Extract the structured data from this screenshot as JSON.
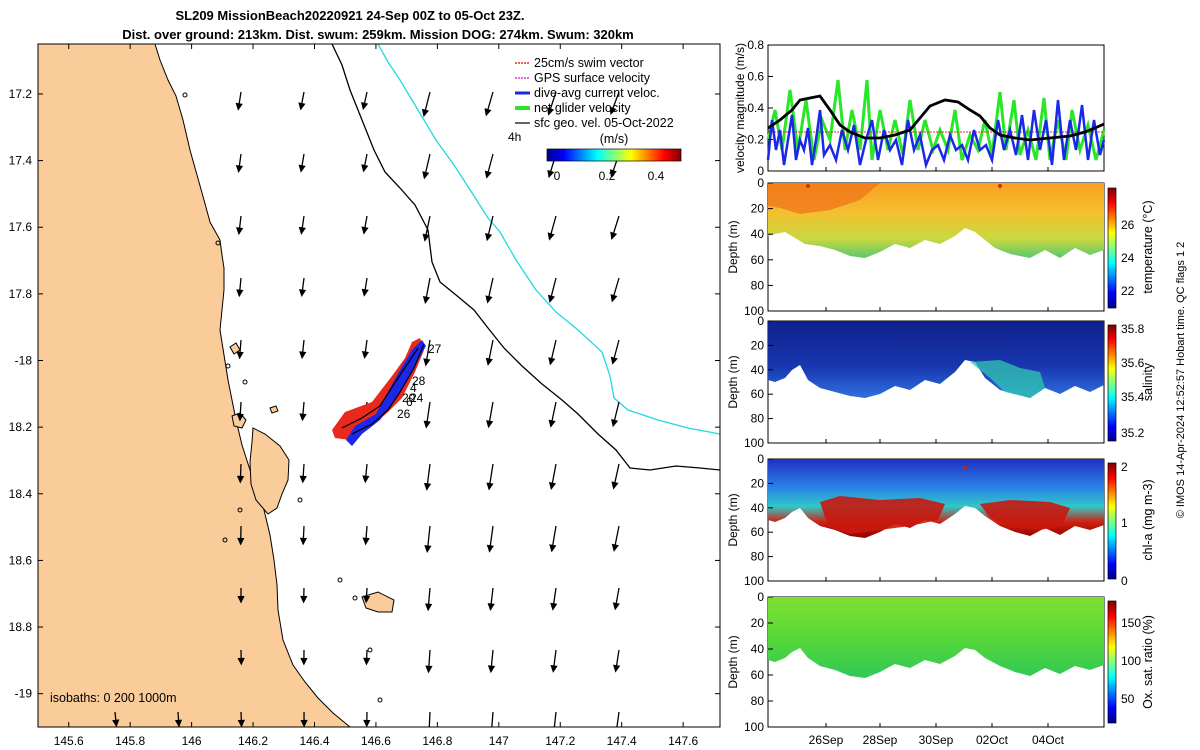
{
  "title_line1": "SL209 MissionBeach20220921 24-Sep 00Z to 05-Oct 23Z.",
  "title_line2": "Dist. over ground: 213km. Dist. swum: 259km. Mission DOG: 274km. Swum: 320km",
  "map": {
    "xlim": [
      145.5,
      147.72
    ],
    "ylim": [
      -19.1,
      -17.05
    ],
    "x_ticks": [
      145.6,
      145.8,
      146,
      146.2,
      146.4,
      146.6,
      146.8,
      147,
      147.2,
      147.4,
      147.6
    ],
    "y_ticks": [
      -17.2,
      -17.4,
      -17.6,
      -17.8,
      -18,
      -18.2,
      -18.4,
      -18.6,
      -18.8,
      -19
    ],
    "x_tick_labels": [
      "145.6",
      "145.8",
      "146",
      "146.2",
      "146.4",
      "146.6",
      "146.8",
      "147",
      "147.2",
      "147.4",
      "147.6"
    ],
    "y_tick_labels": [
      "17.2",
      "17.4",
      "17.6",
      "17.8",
      "-18",
      "18.2",
      "18.4",
      "18.6",
      "18.8",
      "-19"
    ],
    "land_color": "#f9cc9a",
    "isobath_label": "isobaths: 0   200  1000m",
    "time_label": "4h",
    "day_labels": [
      "27",
      "28",
      "4",
      "24",
      "20",
      "26",
      "6"
    ],
    "legend": [
      {
        "label": "25cm/s swim vector",
        "color": "#e8291c"
      },
      {
        "label": "GPS surface velocity",
        "color": "#e535d9"
      },
      {
        "label": "dive-avg current veloc.",
        "color": "#1c28e8"
      },
      {
        "label": "net glider velocity",
        "color": "#29e629"
      },
      {
        "label": "sfc geo. vel. 05-Oct-2022",
        "color": "#000000"
      }
    ],
    "colorbar": {
      "unit": "(m/s)",
      "tick_labels": [
        "0",
        "0.2",
        "0.4"
      ]
    }
  },
  "right_panels": {
    "time_tick_labels": [
      "26Sep",
      "28Sep",
      "30Sep",
      "02Oct",
      "04Oct"
    ],
    "velocity": {
      "ylabel": "velocity magnitude (m/s)",
      "y_tick_labels": [
        "0",
        "0.2",
        "0.4",
        "0.6",
        "0.8"
      ],
      "ylim": [
        0,
        0.8
      ]
    },
    "depth_label": "Depth (m)",
    "depth_tick_labels": [
      "0",
      "20",
      "40",
      "60",
      "80",
      "100"
    ],
    "temperature": {
      "cbar_label": "temperature (°C)",
      "cbar_ticks": [
        "22",
        "24",
        "26"
      ]
    },
    "salinity": {
      "cbar_label": "salinity",
      "cbar_ticks": [
        "35.2",
        "35.4",
        "35.6",
        "35.8"
      ]
    },
    "chla": {
      "cbar_label": "chl-a (mg m-3)",
      "cbar_ticks": [
        "0",
        "1",
        "2"
      ]
    },
    "oxygen": {
      "cbar_label": "Ox. sat. ratio (%)",
      "cbar_ticks": [
        "50",
        "100",
        "150"
      ]
    }
  },
  "footer_text": "© IMOS 14-Apr-2024 12:52:57 Hobart time. QC flags 1  2"
}
